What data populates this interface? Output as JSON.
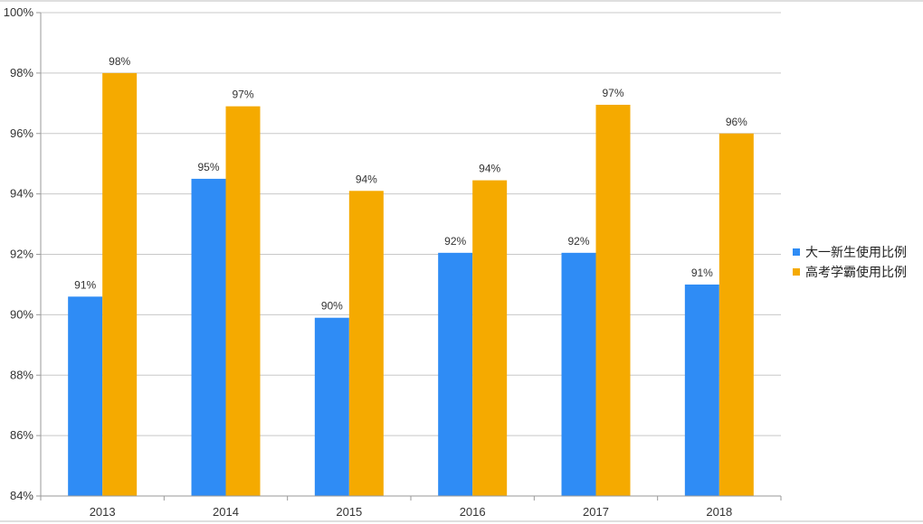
{
  "chart_data": {
    "type": "bar",
    "categories": [
      "2013",
      "2014",
      "2015",
      "2016",
      "2017",
      "2018"
    ],
    "series": [
      {
        "name": "大一新生使用比例",
        "color": "#2f8cf5",
        "values": [
          90.6,
          94.5,
          89.9,
          92.05,
          92.05,
          91.0
        ],
        "labels": [
          "91%",
          "95%",
          "90%",
          "92%",
          "92%",
          "91%"
        ]
      },
      {
        "name": "高考学霸使用比例",
        "color": "#f5aa00",
        "values": [
          98.0,
          96.9,
          94.1,
          94.45,
          96.95,
          96.0
        ],
        "labels": [
          "98%",
          "97%",
          "94%",
          "94%",
          "97%",
          "96%"
        ]
      }
    ],
    "ylim": [
      84,
      100
    ],
    "yticks": [
      84,
      86,
      88,
      90,
      92,
      94,
      96,
      98,
      100
    ],
    "ytick_labels": [
      "84%",
      "86%",
      "88%",
      "90%",
      "92%",
      "94%",
      "96%",
      "98%",
      "100%"
    ],
    "grid": true,
    "legend_position": "right",
    "title": "",
    "xlabel": "",
    "ylabel": ""
  }
}
